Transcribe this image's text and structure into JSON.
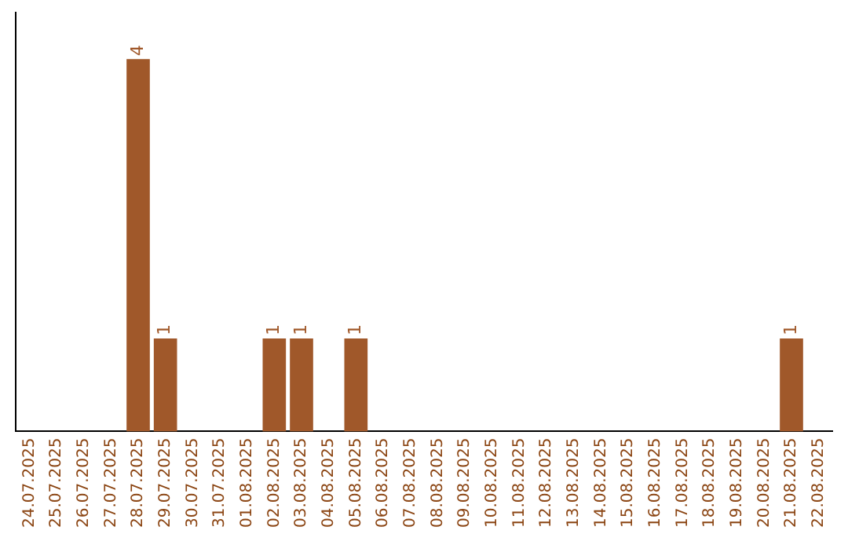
{
  "chart_data": {
    "type": "bar",
    "categories": [
      "24.07.2025",
      "25.07.2025",
      "26.07.2025",
      "27.07.2025",
      "28.07.2025",
      "29.07.2025",
      "30.07.2025",
      "31.07.2025",
      "01.08.2025",
      "02.08.2025",
      "03.08.2025",
      "04.08.2025",
      "05.08.2025",
      "06.08.2025",
      "07.08.2025",
      "08.08.2025",
      "09.08.2025",
      "10.08.2025",
      "11.08.2025",
      "12.08.2025",
      "13.08.2025",
      "14.08.2025",
      "15.08.2025",
      "16.08.2025",
      "17.08.2025",
      "18.08.2025",
      "19.08.2025",
      "20.08.2025",
      "21.08.2025",
      "22.08.2025"
    ],
    "values": [
      0,
      0,
      0,
      0,
      4,
      1,
      0,
      0,
      0,
      1,
      1,
      0,
      1,
      0,
      0,
      0,
      0,
      0,
      0,
      0,
      0,
      0,
      0,
      0,
      0,
      0,
      0,
      0,
      1,
      0
    ],
    "value_labels": [
      null,
      null,
      null,
      null,
      "4",
      "1",
      null,
      null,
      null,
      "1",
      "1",
      null,
      "1",
      null,
      null,
      null,
      null,
      null,
      null,
      null,
      null,
      null,
      null,
      null,
      null,
      null,
      null,
      null,
      "1",
      null
    ],
    "color": "#a0582a",
    "grid": false,
    "legend": false,
    "tick_labels": "x"
  }
}
